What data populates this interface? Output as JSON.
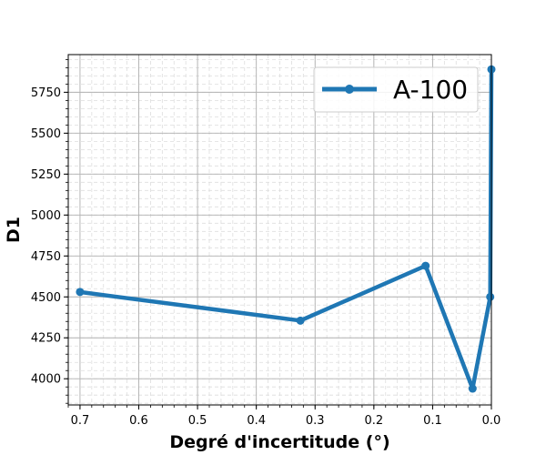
{
  "chart_data": {
    "type": "line",
    "title": "",
    "xlabel": "Degré d'incertitude (°)",
    "ylabel": "D1",
    "x_inverted": true,
    "xlim": [
      0.72,
      0.0
    ],
    "ylim": [
      3840,
      5980
    ],
    "xticks": [
      0.7,
      0.6,
      0.5,
      0.4,
      0.3,
      0.2,
      0.1,
      0.0
    ],
    "xtick_labels": [
      "0.7",
      "0.6",
      "0.5",
      "0.4",
      "0.3",
      "0.2",
      "0.1",
      "0.0"
    ],
    "yticks": [
      4000,
      4250,
      4500,
      4750,
      5000,
      5250,
      5500,
      5750
    ],
    "ytick_labels": [
      "4000",
      "4250",
      "4500",
      "4750",
      "5000",
      "5250",
      "5500",
      "5750"
    ],
    "grid": true,
    "minor_grid": true,
    "legend_position": "upper right",
    "series": [
      {
        "name": "A-100",
        "color": "#1f77b4",
        "marker": "circle",
        "x": [
          0.7,
          0.325,
          0.112,
          0.032,
          0.002,
          0.0
        ],
        "y": [
          4530,
          4355,
          4690,
          3940,
          4500,
          5890
        ]
      }
    ]
  }
}
